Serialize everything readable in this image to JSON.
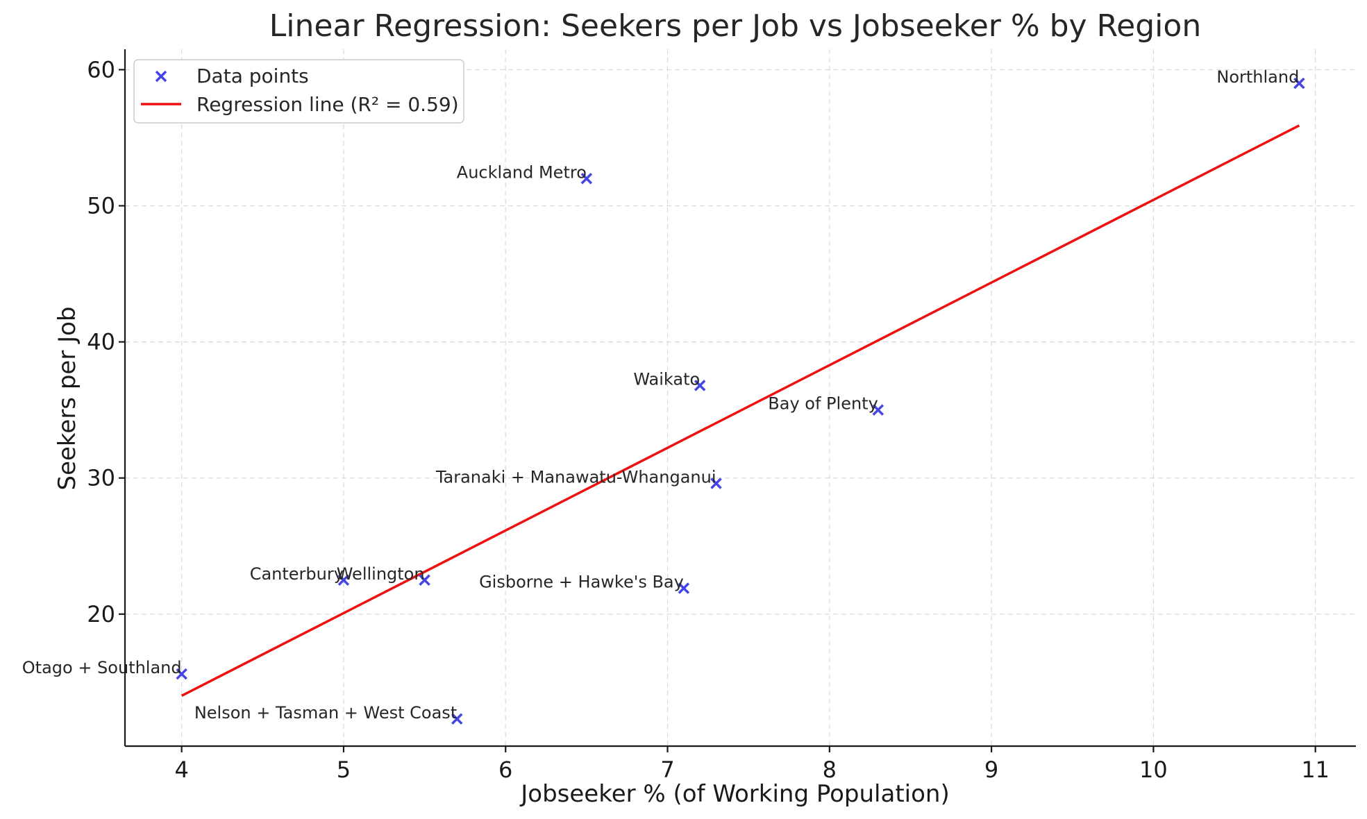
{
  "chart_data": {
    "type": "scatter",
    "title": "Linear Regression: Seekers per Job vs Jobseeker % by Region",
    "xlabel": "Jobseeker % (of Working Population)",
    "ylabel": "Seekers per Job",
    "xlim": [
      3.65,
      11.25
    ],
    "ylim": [
      10.3,
      61.5
    ],
    "xticks": [
      4,
      5,
      6,
      7,
      8,
      9,
      10,
      11
    ],
    "yticks": [
      20,
      30,
      40,
      50,
      60
    ],
    "grid": true,
    "legend_position": "top-left",
    "series": [
      {
        "name": "Data points",
        "kind": "scatter",
        "marker": "x",
        "color": "#4545e6",
        "points": [
          {
            "label": "Northland",
            "x": 10.9,
            "y": 59.0
          },
          {
            "label": "Auckland Metro",
            "x": 6.5,
            "y": 52.0
          },
          {
            "label": "Waikato",
            "x": 7.2,
            "y": 36.8
          },
          {
            "label": "Bay of Plenty",
            "x": 8.3,
            "y": 35.0
          },
          {
            "label": "Taranaki + Manawatu-Whanganui",
            "x": 7.3,
            "y": 29.6
          },
          {
            "label": "Canterbury",
            "x": 5.0,
            "y": 22.5
          },
          {
            "label": "Wellington",
            "x": 5.5,
            "y": 22.5
          },
          {
            "label": "Gisborne + Hawke's Bay",
            "x": 7.1,
            "y": 21.9
          },
          {
            "label": "Otago + Southland",
            "x": 4.0,
            "y": 15.6
          },
          {
            "label": "Nelson + Tasman + West Coast",
            "x": 5.7,
            "y": 12.3
          }
        ]
      },
      {
        "name": "Regression line (R² = 0.59)",
        "kind": "line",
        "color": "#ee1111",
        "x": [
          4.0,
          10.9
        ],
        "y": [
          14.0,
          55.9
        ]
      }
    ]
  }
}
